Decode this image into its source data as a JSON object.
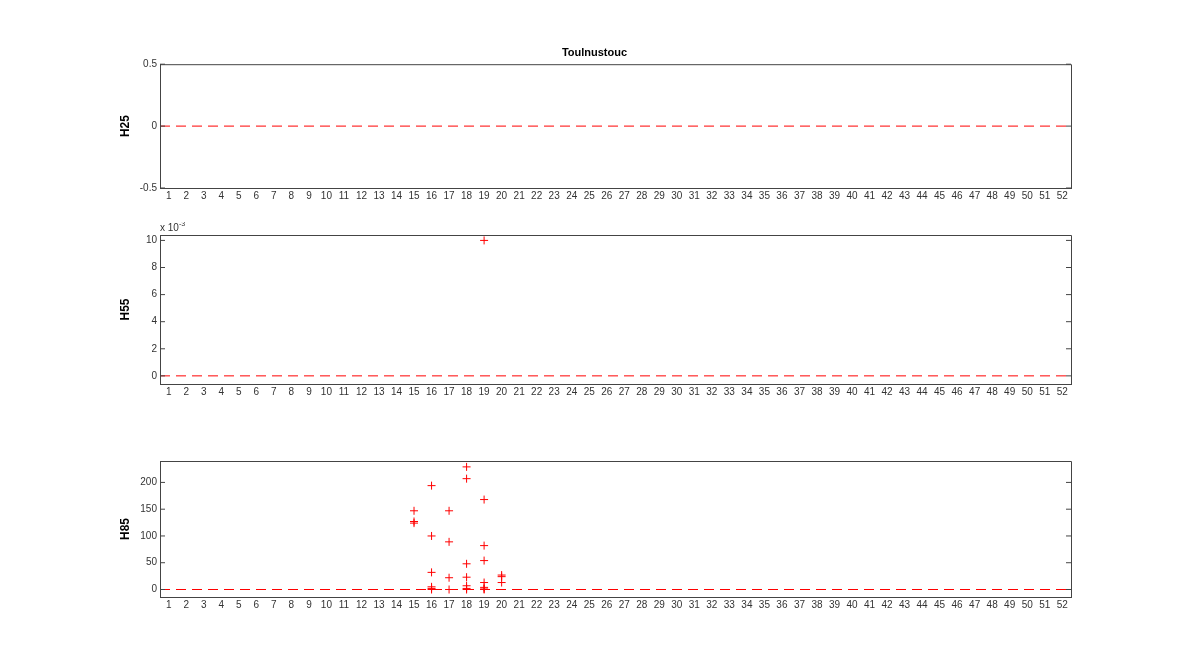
{
  "chart_data": [
    {
      "type": "scatter",
      "title": "Toulnustouc",
      "ylabel": "H25",
      "color": "#ff0000",
      "marker": "cross",
      "xlim": [
        0.5,
        52.5
      ],
      "xticks": [
        1,
        2,
        3,
        4,
        5,
        6,
        7,
        8,
        9,
        10,
        11,
        12,
        13,
        14,
        15,
        16,
        17,
        18,
        19,
        20,
        21,
        22,
        23,
        24,
        25,
        26,
        27,
        28,
        29,
        30,
        31,
        32,
        33,
        34,
        35,
        36,
        37,
        38,
        39,
        40,
        41,
        42,
        43,
        44,
        45,
        46,
        47,
        48,
        49,
        50,
        51,
        52
      ],
      "ylim": [
        -0.5,
        0.5
      ],
      "yticks": [
        -0.5,
        0,
        0.5
      ],
      "ref_lines": [
        {
          "axis": "y",
          "value": 0,
          "color": "#ff0000",
          "line_style": "dashed"
        }
      ]
    },
    {
      "type": "scatter",
      "ylabel": "H55",
      "annotations": [
        "x 10$^{-3}$"
      ],
      "x": [
        19
      ],
      "values": [
        10
      ],
      "color": "#ff0000",
      "marker": "cross",
      "xlim": [
        0.5,
        52.5
      ],
      "xticks": [
        1,
        2,
        3,
        4,
        5,
        6,
        7,
        8,
        9,
        10,
        11,
        12,
        13,
        14,
        15,
        16,
        17,
        18,
        19,
        20,
        21,
        22,
        23,
        24,
        25,
        26,
        27,
        28,
        29,
        30,
        31,
        32,
        33,
        34,
        35,
        36,
        37,
        38,
        39,
        40,
        41,
        42,
        43,
        44,
        45,
        46,
        47,
        48,
        49,
        50,
        51,
        52
      ],
      "ylim": [
        -0.6,
        10.4
      ],
      "yticks": [
        0,
        2,
        4,
        6,
        8,
        10
      ],
      "ref_lines": [
        {
          "axis": "y",
          "value": 0,
          "color": "#ff0000",
          "line_style": "dashed"
        }
      ]
    },
    {
      "type": "scatter",
      "ylabel": "H85",
      "x": [
        15,
        15,
        15,
        16,
        16,
        16,
        16,
        16,
        16,
        17,
        17,
        17,
        17,
        18,
        18,
        18,
        18,
        18,
        18,
        18,
        19,
        19,
        19,
        19,
        19,
        19,
        19,
        20,
        20,
        20
      ],
      "values": [
        147,
        127,
        124,
        194,
        100,
        32,
        5,
        2,
        0,
        147,
        89,
        22,
        0,
        229,
        207,
        48,
        23,
        7,
        2,
        0,
        168,
        82,
        54,
        13,
        4,
        1,
        0,
        27,
        24,
        13
      ],
      "color": "#ff0000",
      "marker": "cross",
      "xlim": [
        0.5,
        52.5
      ],
      "xticks": [
        1,
        2,
        3,
        4,
        5,
        6,
        7,
        8,
        9,
        10,
        11,
        12,
        13,
        14,
        15,
        16,
        17,
        18,
        19,
        20,
        21,
        22,
        23,
        24,
        25,
        26,
        27,
        28,
        29,
        30,
        31,
        32,
        33,
        34,
        35,
        36,
        37,
        38,
        39,
        40,
        41,
        42,
        43,
        44,
        45,
        46,
        47,
        48,
        49,
        50,
        51,
        52
      ],
      "ylim": [
        -14,
        240
      ],
      "yticks": [
        0,
        50,
        100,
        150,
        200
      ],
      "ref_lines": [
        {
          "axis": "y",
          "value": 0,
          "color": "#ff0000",
          "line_style": "dashed"
        }
      ]
    }
  ]
}
